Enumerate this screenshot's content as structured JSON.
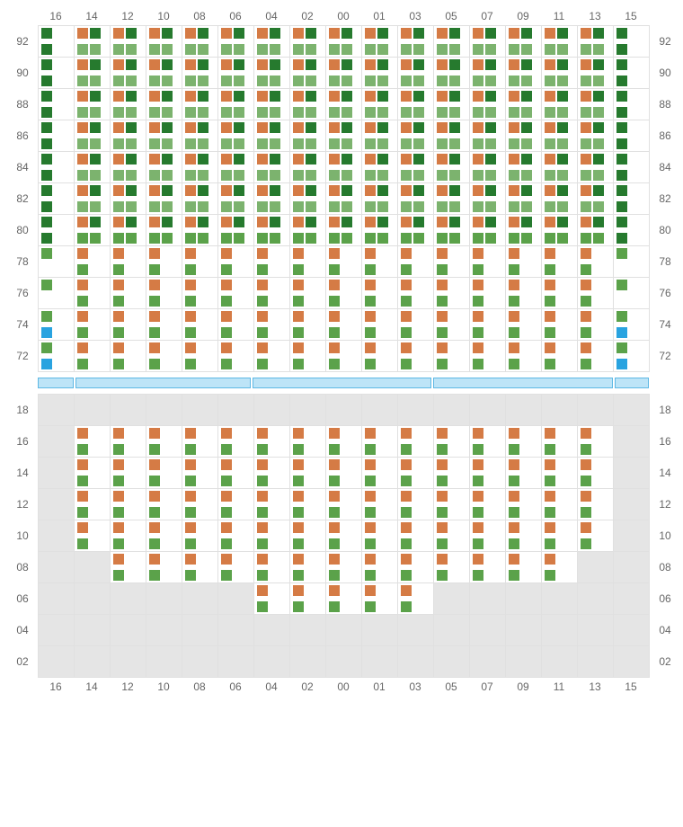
{
  "colors": {
    "orange": "#d57b45",
    "green": "#5ba24a",
    "darkgreen": "#267a2e",
    "lightgreen": "#7cb36e",
    "blue": "#29a3e0",
    "grid": "#e0e0e0",
    "empty": "#e5e5e5",
    "label": "#666666",
    "bar_fill": "#bde4f7",
    "bar_border": "#5eb8e4"
  },
  "columns": [
    "16",
    "14",
    "12",
    "10",
    "08",
    "06",
    "04",
    "02",
    "00",
    "01",
    "03",
    "05",
    "07",
    "09",
    "11",
    "13",
    "15"
  ],
  "top": {
    "rows": [
      "92",
      "90",
      "88",
      "86",
      "84",
      "82",
      "80",
      "78",
      "76",
      "74",
      "72"
    ],
    "cells": {
      "explain": "per row, per col index 0-16, type code",
      "types": {
        "A": {
          "top": [
            "darkgreen"
          ],
          "bot": [
            "darkgreen"
          ]
        },
        "B": {
          "top": [
            "orange",
            "darkgreen"
          ],
          "bot": [
            "lightgreen",
            "lightgreen"
          ]
        },
        "C": {
          "top": [
            "green"
          ],
          "bot": []
        },
        "D": {
          "top": [
            "orange"
          ],
          "bot": [
            "green"
          ]
        },
        "E": {
          "top": [
            "green"
          ],
          "bot": [
            "blue"
          ]
        },
        "F": {
          "top": [
            "orange",
            "darkgreen"
          ],
          "bot": [
            "green",
            "green"
          ]
        },
        "G": {
          "top": [
            "orange"
          ],
          "bot": [
            "green"
          ]
        }
      },
      "data": [
        [
          "A",
          "B",
          "B",
          "B",
          "B",
          "B",
          "B",
          "B",
          "B",
          "B",
          "B",
          "B",
          "B",
          "B",
          "B",
          "B",
          "A"
        ],
        [
          "A",
          "B",
          "B",
          "B",
          "B",
          "B",
          "B",
          "B",
          "B",
          "B",
          "B",
          "B",
          "B",
          "B",
          "B",
          "B",
          "A"
        ],
        [
          "A",
          "B",
          "B",
          "B",
          "B",
          "B",
          "B",
          "B",
          "B",
          "B",
          "B",
          "B",
          "B",
          "B",
          "B",
          "B",
          "A"
        ],
        [
          "A",
          "B",
          "B",
          "B",
          "B",
          "B",
          "B",
          "B",
          "B",
          "B",
          "B",
          "B",
          "B",
          "B",
          "B",
          "B",
          "A"
        ],
        [
          "A",
          "B",
          "B",
          "B",
          "B",
          "B",
          "B",
          "B",
          "B",
          "B",
          "B",
          "B",
          "B",
          "B",
          "B",
          "B",
          "A"
        ],
        [
          "A",
          "B",
          "B",
          "B",
          "B",
          "B",
          "B",
          "B",
          "B",
          "B",
          "B",
          "B",
          "B",
          "B",
          "B",
          "B",
          "A"
        ],
        [
          "A",
          "F",
          "F",
          "F",
          "F",
          "F",
          "F",
          "F",
          "F",
          "F",
          "F",
          "F",
          "F",
          "F",
          "F",
          "F",
          "A"
        ],
        [
          "C",
          "D",
          "D",
          "D",
          "D",
          "D",
          "D",
          "D",
          "D",
          "D",
          "D",
          "D",
          "D",
          "D",
          "D",
          "D",
          "C"
        ],
        [
          "C",
          "D",
          "D",
          "D",
          "D",
          "D",
          "D",
          "D",
          "D",
          "D",
          "D",
          "D",
          "D",
          "D",
          "D",
          "D",
          "C"
        ],
        [
          "E",
          "D",
          "D",
          "D",
          "D",
          "D",
          "D",
          "D",
          "D",
          "D",
          "D",
          "D",
          "D",
          "D",
          "D",
          "D",
          "E"
        ],
        [
          "E",
          "D",
          "D",
          "D",
          "D",
          "D",
          "D",
          "D",
          "D",
          "D",
          "D",
          "D",
          "D",
          "D",
          "D",
          "D",
          "E"
        ]
      ]
    }
  },
  "bar_segments": [
    40,
    195,
    200,
    200,
    38
  ],
  "bottom": {
    "rows": [
      "18",
      "16",
      "14",
      "12",
      "10",
      "08",
      "06",
      "04",
      "02"
    ],
    "cells": {
      "data": [
        [
          "",
          "",
          "",
          "",
          "",
          "",
          "",
          "",
          "",
          "",
          "",
          "",
          "",
          "",
          "",
          "",
          ""
        ],
        [
          "",
          "G",
          "G",
          "G",
          "G",
          "G",
          "G",
          "G",
          "G",
          "G",
          "G",
          "G",
          "G",
          "G",
          "G",
          "G",
          ""
        ],
        [
          "",
          "G",
          "G",
          "G",
          "G",
          "G",
          "G",
          "G",
          "G",
          "G",
          "G",
          "G",
          "G",
          "G",
          "G",
          "G",
          ""
        ],
        [
          "",
          "G",
          "G",
          "G",
          "G",
          "G",
          "G",
          "G",
          "G",
          "G",
          "G",
          "G",
          "G",
          "G",
          "G",
          "G",
          ""
        ],
        [
          "",
          "G",
          "G",
          "G",
          "G",
          "G",
          "G",
          "G",
          "G",
          "G",
          "G",
          "G",
          "G",
          "G",
          "G",
          "G",
          ""
        ],
        [
          "",
          "",
          "G",
          "G",
          "G",
          "G",
          "G",
          "G",
          "G",
          "G",
          "G",
          "G",
          "G",
          "G",
          "G",
          "",
          ""
        ],
        [
          "",
          "",
          "",
          "",
          "",
          "",
          "G",
          "G",
          "G",
          "G",
          "G",
          "",
          "",
          "",
          "",
          "",
          ""
        ],
        [
          "",
          "",
          "",
          "",
          "",
          "",
          "",
          "",
          "",
          "",
          "",
          "",
          "",
          "",
          "",
          "",
          ""
        ],
        [
          "",
          "",
          "",
          "",
          "",
          "",
          "",
          "",
          "",
          "",
          "",
          "",
          "",
          "",
          "",
          "",
          ""
        ]
      ]
    }
  }
}
